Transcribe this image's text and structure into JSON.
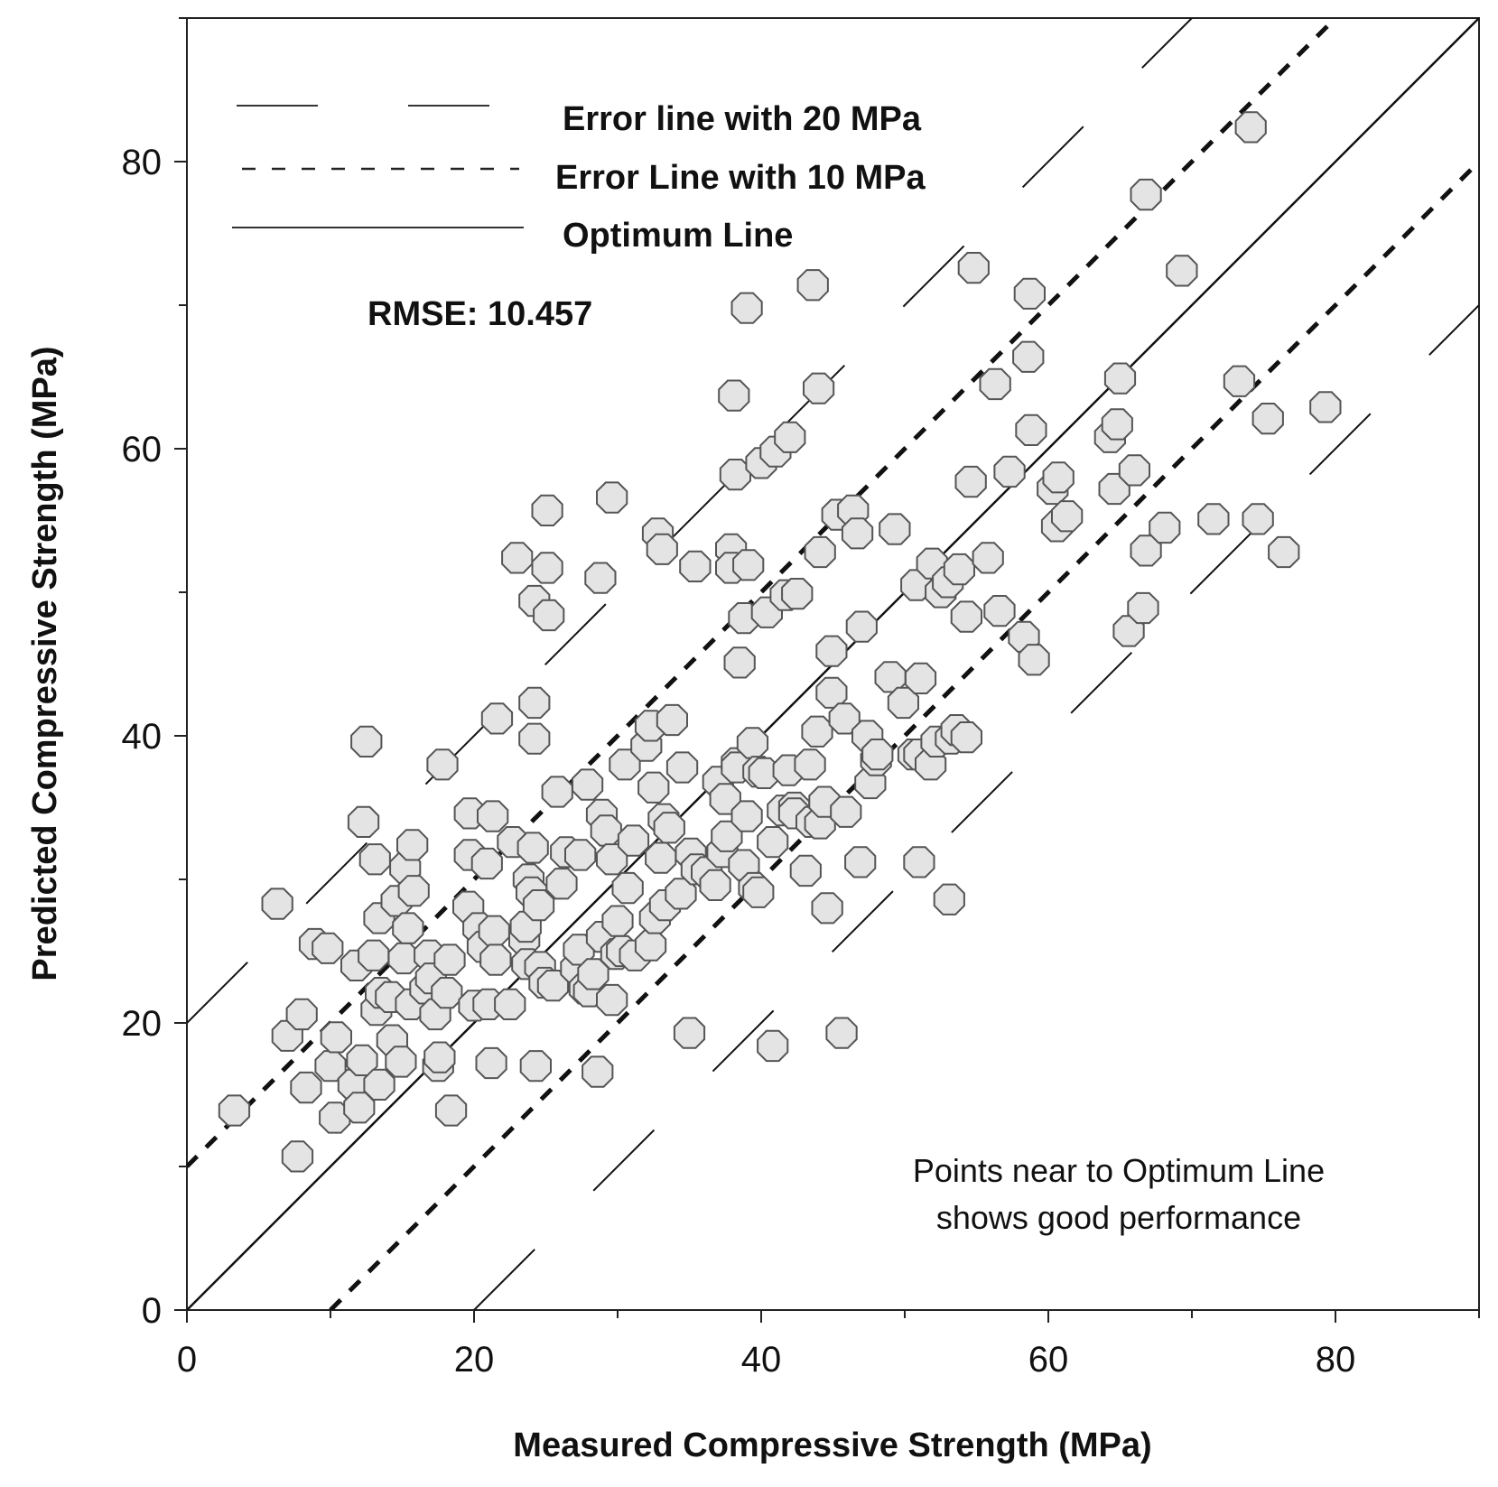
{
  "chart_data": {
    "type": "scatter",
    "xlabel": "Measured Compressive Strength (MPa)",
    "ylabel": "Predicted Compressive Strength (MPa)",
    "xlim": [
      0,
      90
    ],
    "ylim": [
      0,
      90
    ],
    "x_ticks": [
      0,
      20,
      40,
      60,
      80
    ],
    "y_ticks": [
      0,
      20,
      40,
      60,
      80
    ],
    "legend": {
      "position": "top-left",
      "items": [
        {
          "label": "Error line with 20 MPa",
          "style": "long-dash",
          "offset": 20
        },
        {
          "label": "Error Line with 10 MPa",
          "style": "short-dash",
          "offset": 10
        },
        {
          "label": "Optimum Line",
          "style": "solid",
          "offset": 0
        }
      ]
    },
    "annotations": {
      "rmse": "RMSE: 10.457",
      "note_line1": "Points near to Optimum Line",
      "note_line2": "shows good performance"
    },
    "colors": {
      "marker_fill": "#e4e4e4",
      "marker_stroke": "#555555",
      "line": "#111111"
    },
    "marker": "octagon",
    "points": [
      [
        3.3,
        13.9
      ],
      [
        6.3,
        28.3
      ],
      [
        7.0,
        19.1
      ],
      [
        7.7,
        10.7
      ],
      [
        8.0,
        20.6
      ],
      [
        8.3,
        15.5
      ],
      [
        8.9,
        25.5
      ],
      [
        9.8,
        25.2
      ],
      [
        10.0,
        17.0
      ],
      [
        10.3,
        13.4
      ],
      [
        10.4,
        19.0
      ],
      [
        11.6,
        15.7
      ],
      [
        11.8,
        24.0
      ],
      [
        12.0,
        14.1
      ],
      [
        12.2,
        17.4
      ],
      [
        12.3,
        34.0
      ],
      [
        12.5,
        39.6
      ],
      [
        13.0,
        24.7
      ],
      [
        13.1,
        31.4
      ],
      [
        13.2,
        20.9
      ],
      [
        13.4,
        27.3
      ],
      [
        13.4,
        15.7
      ],
      [
        13.5,
        22.1
      ],
      [
        14.2,
        21.8
      ],
      [
        14.3,
        18.8
      ],
      [
        14.6,
        28.5
      ],
      [
        14.9,
        17.3
      ],
      [
        15.1,
        24.5
      ],
      [
        15.2,
        30.8
      ],
      [
        15.4,
        26.6
      ],
      [
        15.6,
        21.3
      ],
      [
        15.7,
        32.4
      ],
      [
        15.8,
        29.2
      ],
      [
        16.6,
        22.4
      ],
      [
        16.9,
        24.7
      ],
      [
        17.0,
        23.1
      ],
      [
        17.3,
        20.6
      ],
      [
        17.5,
        17.0
      ],
      [
        17.6,
        17.6
      ],
      [
        17.8,
        38.0
      ],
      [
        18.1,
        22.1
      ],
      [
        18.3,
        24.4
      ],
      [
        18.4,
        13.9
      ],
      [
        19.6,
        28.1
      ],
      [
        19.7,
        31.7
      ],
      [
        19.7,
        34.6
      ],
      [
        20.0,
        21.2
      ],
      [
        20.3,
        26.6
      ],
      [
        20.6,
        25.3
      ],
      [
        20.9,
        31.1
      ],
      [
        21.0,
        21.3
      ],
      [
        21.2,
        17.2
      ],
      [
        21.3,
        34.4
      ],
      [
        21.4,
        26.4
      ],
      [
        21.5,
        24.4
      ],
      [
        21.6,
        41.2
      ],
      [
        22.5,
        21.3
      ],
      [
        22.7,
        32.6
      ],
      [
        23.0,
        52.4
      ],
      [
        23.5,
        25.8
      ],
      [
        23.6,
        26.7
      ],
      [
        23.7,
        24.1
      ],
      [
        23.8,
        30.0
      ],
      [
        24.0,
        29.1
      ],
      [
        24.1,
        32.2
      ],
      [
        24.2,
        49.4
      ],
      [
        24.2,
        42.3
      ],
      [
        24.2,
        39.8
      ],
      [
        24.3,
        17.0
      ],
      [
        24.5,
        28.2
      ],
      [
        24.6,
        23.9
      ],
      [
        24.9,
        22.8
      ],
      [
        25.1,
        55.7
      ],
      [
        25.1,
        51.7
      ],
      [
        25.2,
        48.4
      ],
      [
        25.5,
        22.6
      ],
      [
        25.8,
        36.1
      ],
      [
        26.1,
        29.7
      ],
      [
        26.4,
        31.9
      ],
      [
        27.1,
        23.8
      ],
      [
        27.3,
        25.1
      ],
      [
        27.4,
        31.7
      ],
      [
        27.7,
        22.4
      ],
      [
        27.9,
        36.6
      ],
      [
        28.0,
        22.2
      ],
      [
        28.3,
        23.4
      ],
      [
        28.6,
        16.6
      ],
      [
        28.8,
        51.0
      ],
      [
        28.9,
        34.5
      ],
      [
        28.9,
        26.0
      ],
      [
        29.2,
        33.4
      ],
      [
        29.6,
        56.6
      ],
      [
        29.6,
        31.4
      ],
      [
        29.6,
        21.6
      ],
      [
        29.9,
        24.8
      ],
      [
        30.0,
        27.1
      ],
      [
        30.3,
        25.0
      ],
      [
        30.5,
        38.0
      ],
      [
        30.7,
        29.4
      ],
      [
        31.1,
        32.7
      ],
      [
        31.2,
        24.7
      ],
      [
        32.0,
        39.3
      ],
      [
        32.3,
        25.4
      ],
      [
        32.3,
        40.7
      ],
      [
        32.5,
        36.4
      ],
      [
        32.6,
        27.3
      ],
      [
        32.8,
        54.1
      ],
      [
        33.0,
        31.5
      ],
      [
        33.1,
        53.0
      ],
      [
        33.2,
        34.2
      ],
      [
        33.3,
        28.2
      ],
      [
        33.6,
        33.6
      ],
      [
        33.8,
        41.1
      ],
      [
        34.4,
        29.0
      ],
      [
        34.5,
        37.8
      ],
      [
        35.0,
        19.3
      ],
      [
        35.1,
        31.8
      ],
      [
        35.4,
        51.8
      ],
      [
        35.5,
        30.7
      ],
      [
        36.2,
        30.5
      ],
      [
        36.8,
        29.6
      ],
      [
        37.0,
        36.8
      ],
      [
        37.3,
        31.9
      ],
      [
        37.5,
        35.6
      ],
      [
        37.6,
        33.0
      ],
      [
        37.9,
        53.0
      ],
      [
        37.9,
        51.7
      ],
      [
        38.1,
        63.7
      ],
      [
        38.2,
        58.2
      ],
      [
        38.3,
        38.1
      ],
      [
        38.3,
        37.8
      ],
      [
        38.5,
        45.1
      ],
      [
        38.8,
        48.2
      ],
      [
        38.8,
        31.0
      ],
      [
        39.0,
        69.8
      ],
      [
        39.0,
        34.4
      ],
      [
        39.1,
        51.9
      ],
      [
        39.4,
        39.5
      ],
      [
        39.5,
        29.4
      ],
      [
        39.8,
        37.5
      ],
      [
        39.8,
        29.1
      ],
      [
        40.0,
        59.0
      ],
      [
        40.2,
        37.4
      ],
      [
        40.4,
        48.6
      ],
      [
        40.8,
        32.6
      ],
      [
        40.8,
        18.4
      ],
      [
        41.0,
        59.8
      ],
      [
        41.5,
        34.8
      ],
      [
        41.7,
        49.8
      ],
      [
        41.9,
        37.6
      ],
      [
        42.0,
        60.8
      ],
      [
        42.3,
        35.0
      ],
      [
        42.3,
        34.6
      ],
      [
        42.5,
        49.9
      ],
      [
        43.1,
        30.6
      ],
      [
        43.4,
        38.0
      ],
      [
        43.5,
        34.0
      ],
      [
        43.6,
        71.4
      ],
      [
        43.9,
        40.3
      ],
      [
        44.0,
        64.2
      ],
      [
        44.1,
        52.8
      ],
      [
        44.1,
        33.9
      ],
      [
        44.4,
        35.4
      ],
      [
        44.6,
        28.0
      ],
      [
        44.9,
        45.9
      ],
      [
        44.9,
        43.0
      ],
      [
        45.3,
        55.4
      ],
      [
        45.6,
        19.3
      ],
      [
        45.8,
        41.2
      ],
      [
        45.9,
        34.7
      ],
      [
        46.4,
        55.7
      ],
      [
        46.7,
        54.1
      ],
      [
        46.9,
        31.2
      ],
      [
        47.0,
        47.6
      ],
      [
        47.4,
        40.0
      ],
      [
        47.6,
        36.7
      ],
      [
        48.0,
        38.3
      ],
      [
        48.1,
        38.7
      ],
      [
        49.0,
        44.1
      ],
      [
        49.3,
        54.4
      ],
      [
        49.9,
        42.3
      ],
      [
        50.6,
        38.7
      ],
      [
        50.8,
        50.5
      ],
      [
        51.0,
        31.2
      ],
      [
        51.0,
        38.7
      ],
      [
        51.1,
        44.0
      ],
      [
        51.8,
        38.0
      ],
      [
        51.9,
        52.0
      ],
      [
        52.2,
        39.6
      ],
      [
        52.5,
        50.0
      ],
      [
        53.0,
        50.7
      ],
      [
        53.1,
        28.6
      ],
      [
        53.2,
        39.8
      ],
      [
        53.6,
        40.4
      ],
      [
        53.8,
        51.6
      ],
      [
        54.3,
        39.9
      ],
      [
        54.3,
        48.3
      ],
      [
        54.6,
        57.7
      ],
      [
        54.8,
        72.6
      ],
      [
        55.8,
        52.4
      ],
      [
        56.3,
        64.5
      ],
      [
        56.6,
        48.7
      ],
      [
        57.3,
        58.4
      ],
      [
        58.3,
        46.9
      ],
      [
        58.6,
        66.4
      ],
      [
        58.7,
        70.8
      ],
      [
        58.8,
        61.3
      ],
      [
        59.0,
        45.3
      ],
      [
        60.3,
        57.2
      ],
      [
        60.6,
        54.6
      ],
      [
        60.7,
        58.0
      ],
      [
        61.3,
        55.3
      ],
      [
        64.3,
        60.8
      ],
      [
        64.6,
        57.2
      ],
      [
        64.8,
        61.7
      ],
      [
        65.0,
        64.9
      ],
      [
        65.6,
        47.3
      ],
      [
        66.0,
        58.5
      ],
      [
        66.6,
        48.9
      ],
      [
        66.8,
        77.7
      ],
      [
        66.8,
        52.9
      ],
      [
        68.1,
        54.5
      ],
      [
        69.3,
        72.4
      ],
      [
        71.5,
        55.1
      ],
      [
        73.3,
        64.7
      ],
      [
        74.1,
        82.4
      ],
      [
        74.6,
        55.1
      ],
      [
        75.3,
        62.1
      ],
      [
        76.4,
        52.8
      ],
      [
        79.3,
        62.9
      ]
    ]
  }
}
